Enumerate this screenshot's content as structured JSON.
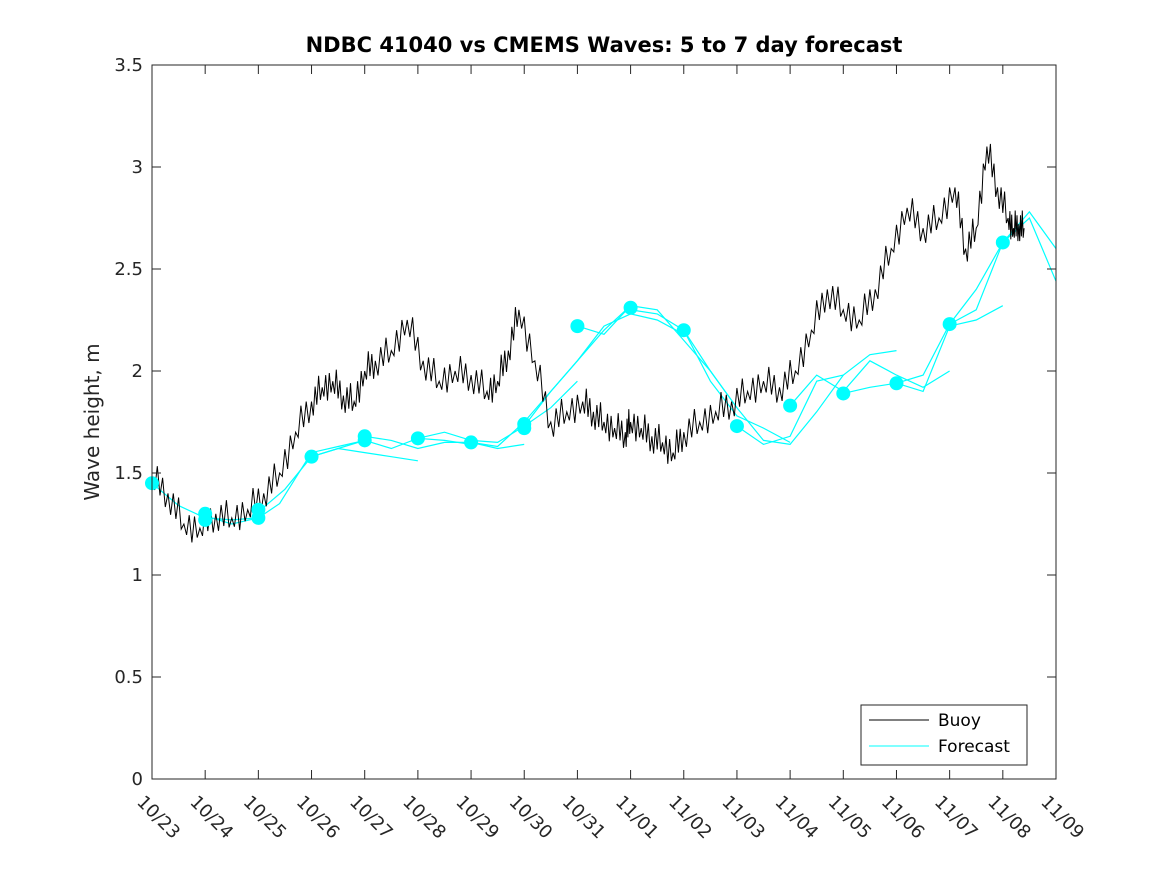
{
  "chart_data": {
    "type": "line",
    "title": "NDBC 41040 vs CMEMS Waves: 5 to 7 day forecast",
    "xlabel": "",
    "ylabel": "Wave height, m",
    "xlim": [
      0,
      17
    ],
    "ylim": [
      0,
      3.5
    ],
    "x_tick_values": [
      0,
      1,
      2,
      3,
      4,
      5,
      6,
      7,
      8,
      9,
      10,
      11,
      12,
      13,
      14,
      15,
      16,
      17
    ],
    "x_tick_labels": [
      "10/23",
      "10/24",
      "10/25",
      "10/26",
      "10/27",
      "10/28",
      "10/29",
      "10/30",
      "10/31",
      "11/01",
      "11/02",
      "11/03",
      "11/04",
      "11/05",
      "11/06",
      "11/07",
      "11/08",
      "11/09"
    ],
    "y_tick_values": [
      0,
      0.5,
      1,
      1.5,
      2,
      2.5,
      3,
      3.5
    ],
    "y_tick_labels": [
      "0",
      "0.5",
      "1",
      "1.5",
      "2",
      "2.5",
      "3",
      "3.5"
    ],
    "legend": {
      "position": "bottom-right",
      "entries": [
        "Buoy",
        "Forecast"
      ]
    },
    "colors": {
      "buoy": "#000000",
      "forecast": "#00ffff"
    },
    "series": [
      {
        "name": "Buoy",
        "x": [
          0,
          0.3,
          0.6,
          0.9,
          1.2,
          1.5,
          1.8,
          2.1,
          2.4,
          2.7,
          3.0,
          3.2,
          3.4,
          3.6,
          3.8,
          4.0,
          4.2,
          4.5,
          4.8,
          5.1,
          5.4,
          5.7,
          6.0,
          6.3,
          6.5,
          6.7,
          6.9,
          7.2,
          7.5,
          7.8,
          8.1,
          8.3,
          8.5,
          8.7,
          8.9,
          9.0,
          9.2,
          9.4,
          9.6,
          9.8,
          10.0,
          10.3,
          10.6,
          10.9,
          11.2,
          11.5,
          11.8,
          12.1,
          12.4,
          12.7,
          13.0,
          13.3,
          13.6,
          13.9,
          14.2,
          14.5,
          14.8,
          15.1,
          15.3,
          15.5,
          15.7,
          15.9,
          16.1,
          16.2,
          16.3,
          16.4
        ],
        "y": [
          1.48,
          1.4,
          1.25,
          1.23,
          1.3,
          1.28,
          1.32,
          1.4,
          1.5,
          1.7,
          1.85,
          1.92,
          1.95,
          1.88,
          1.85,
          2.0,
          2.05,
          2.1,
          2.25,
          2.05,
          1.95,
          2.0,
          1.98,
          1.9,
          1.95,
          2.1,
          2.3,
          2.05,
          1.75,
          1.8,
          1.85,
          1.8,
          1.75,
          1.72,
          1.7,
          1.75,
          1.72,
          1.68,
          1.65,
          1.6,
          1.7,
          1.75,
          1.8,
          1.85,
          1.9,
          1.95,
          1.92,
          2.0,
          2.2,
          2.4,
          2.3,
          2.25,
          2.4,
          2.6,
          2.8,
          2.7,
          2.75,
          2.9,
          2.6,
          2.7,
          3.1,
          2.9,
          2.75,
          2.7,
          2.72,
          2.7
        ]
      },
      {
        "name": "Forecast",
        "runs": [
          {
            "x": [
              0,
              0.5,
              1.0,
              1.5,
              2.0
            ],
            "y": [
              1.45,
              1.34,
              1.28,
              1.27,
              1.28
            ]
          },
          {
            "x": [
              1.0,
              1.5,
              2.0,
              2.4,
              3.0,
              3.5,
              4.0
            ],
            "y": [
              1.29,
              1.25,
              1.28,
              1.35,
              1.6,
              1.63,
              1.66
            ]
          },
          {
            "x": [
              2.0,
              2.5,
              3.0,
              3.5,
              4.0,
              4.5,
              5.0
            ],
            "y": [
              1.31,
              1.42,
              1.58,
              1.62,
              1.6,
              1.58,
              1.56
            ]
          },
          {
            "x": [
              3.0,
              3.5,
              4.0,
              4.5,
              5.0,
              5.5,
              6.0
            ],
            "y": [
              1.58,
              1.62,
              1.66,
              1.62,
              1.67,
              1.66,
              1.64
            ]
          },
          {
            "x": [
              4.0,
              4.5,
              5.0,
              5.5,
              6.0,
              6.5,
              7.0
            ],
            "y": [
              1.68,
              1.66,
              1.62,
              1.65,
              1.65,
              1.62,
              1.64
            ]
          },
          {
            "x": [
              5.0,
              5.5,
              6.0,
              6.5,
              7.0,
              7.5,
              8.0
            ],
            "y": [
              1.67,
              1.7,
              1.66,
              1.65,
              1.73,
              1.82,
              1.95
            ]
          },
          {
            "x": [
              6.0,
              6.5,
              7.0,
              7.5,
              8.0,
              8.5,
              9.0
            ],
            "y": [
              1.65,
              1.63,
              1.75,
              1.9,
              2.05,
              2.2,
              2.32
            ]
          },
          {
            "x": [
              7.0,
              7.5,
              8.0,
              8.5,
              9.0,
              9.5,
              10.0
            ],
            "y": [
              1.73,
              1.9,
              2.05,
              2.22,
              2.28,
              2.25,
              2.18
            ]
          },
          {
            "x": [
              8.0,
              8.5,
              9.0,
              9.5,
              10.0,
              10.5,
              11.0
            ],
            "y": [
              2.22,
              2.18,
              2.32,
              2.3,
              2.15,
              2.0,
              1.82
            ]
          },
          {
            "x": [
              9.0,
              9.5,
              10.0,
              10.5,
              11.0,
              11.5,
              12.0
            ],
            "y": [
              2.3,
              2.28,
              2.2,
              1.95,
              1.78,
              1.72,
              1.65
            ]
          },
          {
            "x": [
              10.0,
              10.5,
              11.0,
              11.5,
              12.0,
              12.5,
              13.0
            ],
            "y": [
              2.2,
              2.0,
              1.82,
              1.66,
              1.64,
              1.8,
              1.98
            ]
          },
          {
            "x": [
              11.0,
              11.5,
              12.0,
              12.5,
              13.0,
              13.5,
              14.0
            ],
            "y": [
              1.73,
              1.64,
              1.68,
              1.95,
              1.98,
              2.08,
              2.1
            ]
          },
          {
            "x": [
              12.0,
              12.5,
              13.0,
              13.5,
              14.0,
              14.5,
              15.0
            ],
            "y": [
              1.83,
              1.98,
              1.9,
              2.05,
              1.98,
              1.92,
              2.0
            ]
          },
          {
            "x": [
              13.0,
              13.5,
              14.0,
              14.5,
              15.0,
              15.5,
              16.0
            ],
            "y": [
              1.89,
              1.92,
              1.94,
              1.9,
              2.22,
              2.25,
              2.32
            ]
          },
          {
            "x": [
              14.0,
              14.5,
              15.0,
              15.5,
              16.0,
              16.5,
              17.0
            ],
            "y": [
              1.94,
              1.98,
              2.23,
              2.4,
              2.63,
              2.78,
              2.6
            ]
          },
          {
            "x": [
              15.0,
              15.5,
              16.0,
              16.5,
              17.0
            ],
            "y": [
              2.23,
              2.3,
              2.63,
              2.75,
              2.44
            ]
          }
        ],
        "markers": {
          "x": [
            0,
            1.0,
            1.0,
            2.0,
            2.0,
            3.0,
            4.0,
            4.0,
            5.0,
            6.0,
            7.0,
            7.0,
            8.0,
            9.0,
            10.0,
            11.0,
            12.0,
            13.0,
            14.0,
            15.0,
            16.0
          ],
          "y": [
            1.45,
            1.3,
            1.27,
            1.32,
            1.28,
            1.58,
            1.68,
            1.66,
            1.67,
            1.65,
            1.74,
            1.72,
            2.22,
            2.31,
            2.2,
            1.73,
            1.83,
            1.89,
            1.94,
            2.23,
            2.63
          ]
        }
      }
    ]
  }
}
